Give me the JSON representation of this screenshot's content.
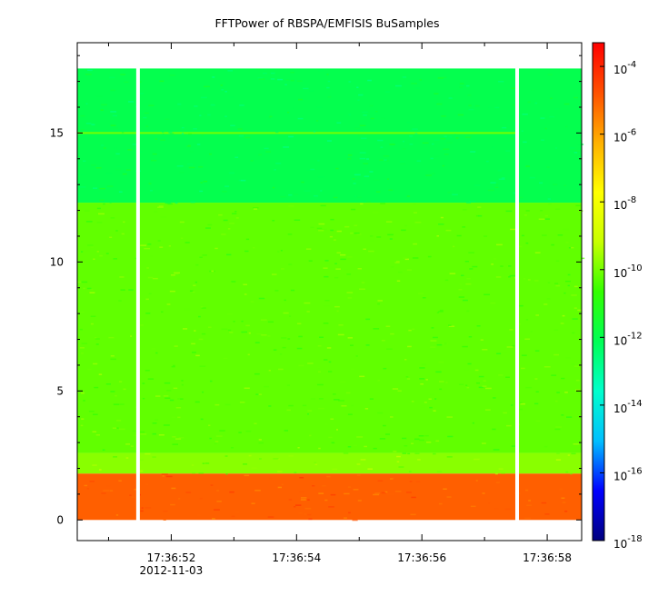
{
  "chart_data": {
    "type": "heatmap",
    "title": "FFTPower of RBSPA/EMFISIS  BuSamples",
    "xlabel": "",
    "ylabel": "",
    "x_ticks": [
      {
        "label": "17:36:52",
        "sublabel": "2012-11-03"
      },
      {
        "label": "17:36:54",
        "sublabel": ""
      },
      {
        "label": "17:36:56",
        "sublabel": ""
      },
      {
        "label": "17:36:58",
        "sublabel": ""
      }
    ],
    "y_ticks": [
      0,
      5,
      10,
      15
    ],
    "ylim": [
      -0.8,
      18.5
    ],
    "xlim_seconds": [
      50.5,
      58.55
    ],
    "data_x_range_seconds": [
      50.5,
      58.55
    ],
    "data_y_range": [
      0,
      17.5
    ],
    "data_gaps_seconds": [
      51.47,
      57.52
    ],
    "colorbar": {
      "scale": "log",
      "ticks": [
        {
          "base": "10",
          "exp": "-4"
        },
        {
          "base": "10",
          "exp": "-6"
        },
        {
          "base": "10",
          "exp": "-8"
        },
        {
          "base": "10",
          "exp": "-10"
        },
        {
          "base": "10",
          "exp": "-12"
        },
        {
          "base": "10",
          "exp": "-14"
        },
        {
          "base": "10",
          "exp": "-16"
        },
        {
          "base": "10",
          "exp": "-18"
        }
      ],
      "range_log10": [
        -18,
        -3.3
      ],
      "colors": [
        "#00007f",
        "#0000ff",
        "#00bfff",
        "#00ffcc",
        "#00ff55",
        "#33ff00",
        "#c8ff00",
        "#ffff00",
        "#ffb000",
        "#ff5000",
        "#ff0000"
      ]
    },
    "bands": [
      {
        "y_range": [
          0,
          1.8
        ],
        "log10_power": -5.0
      },
      {
        "y_range": [
          1.8,
          2.6
        ],
        "log10_power": -9.8
      },
      {
        "y_range": [
          2.6,
          12.3
        ],
        "log10_power": -10.2
      },
      {
        "y_range": [
          12.3,
          17.5
        ],
        "log10_power": -12.0
      }
    ],
    "line_feature": {
      "y": 15.0,
      "log10_power": -10.0
    }
  }
}
